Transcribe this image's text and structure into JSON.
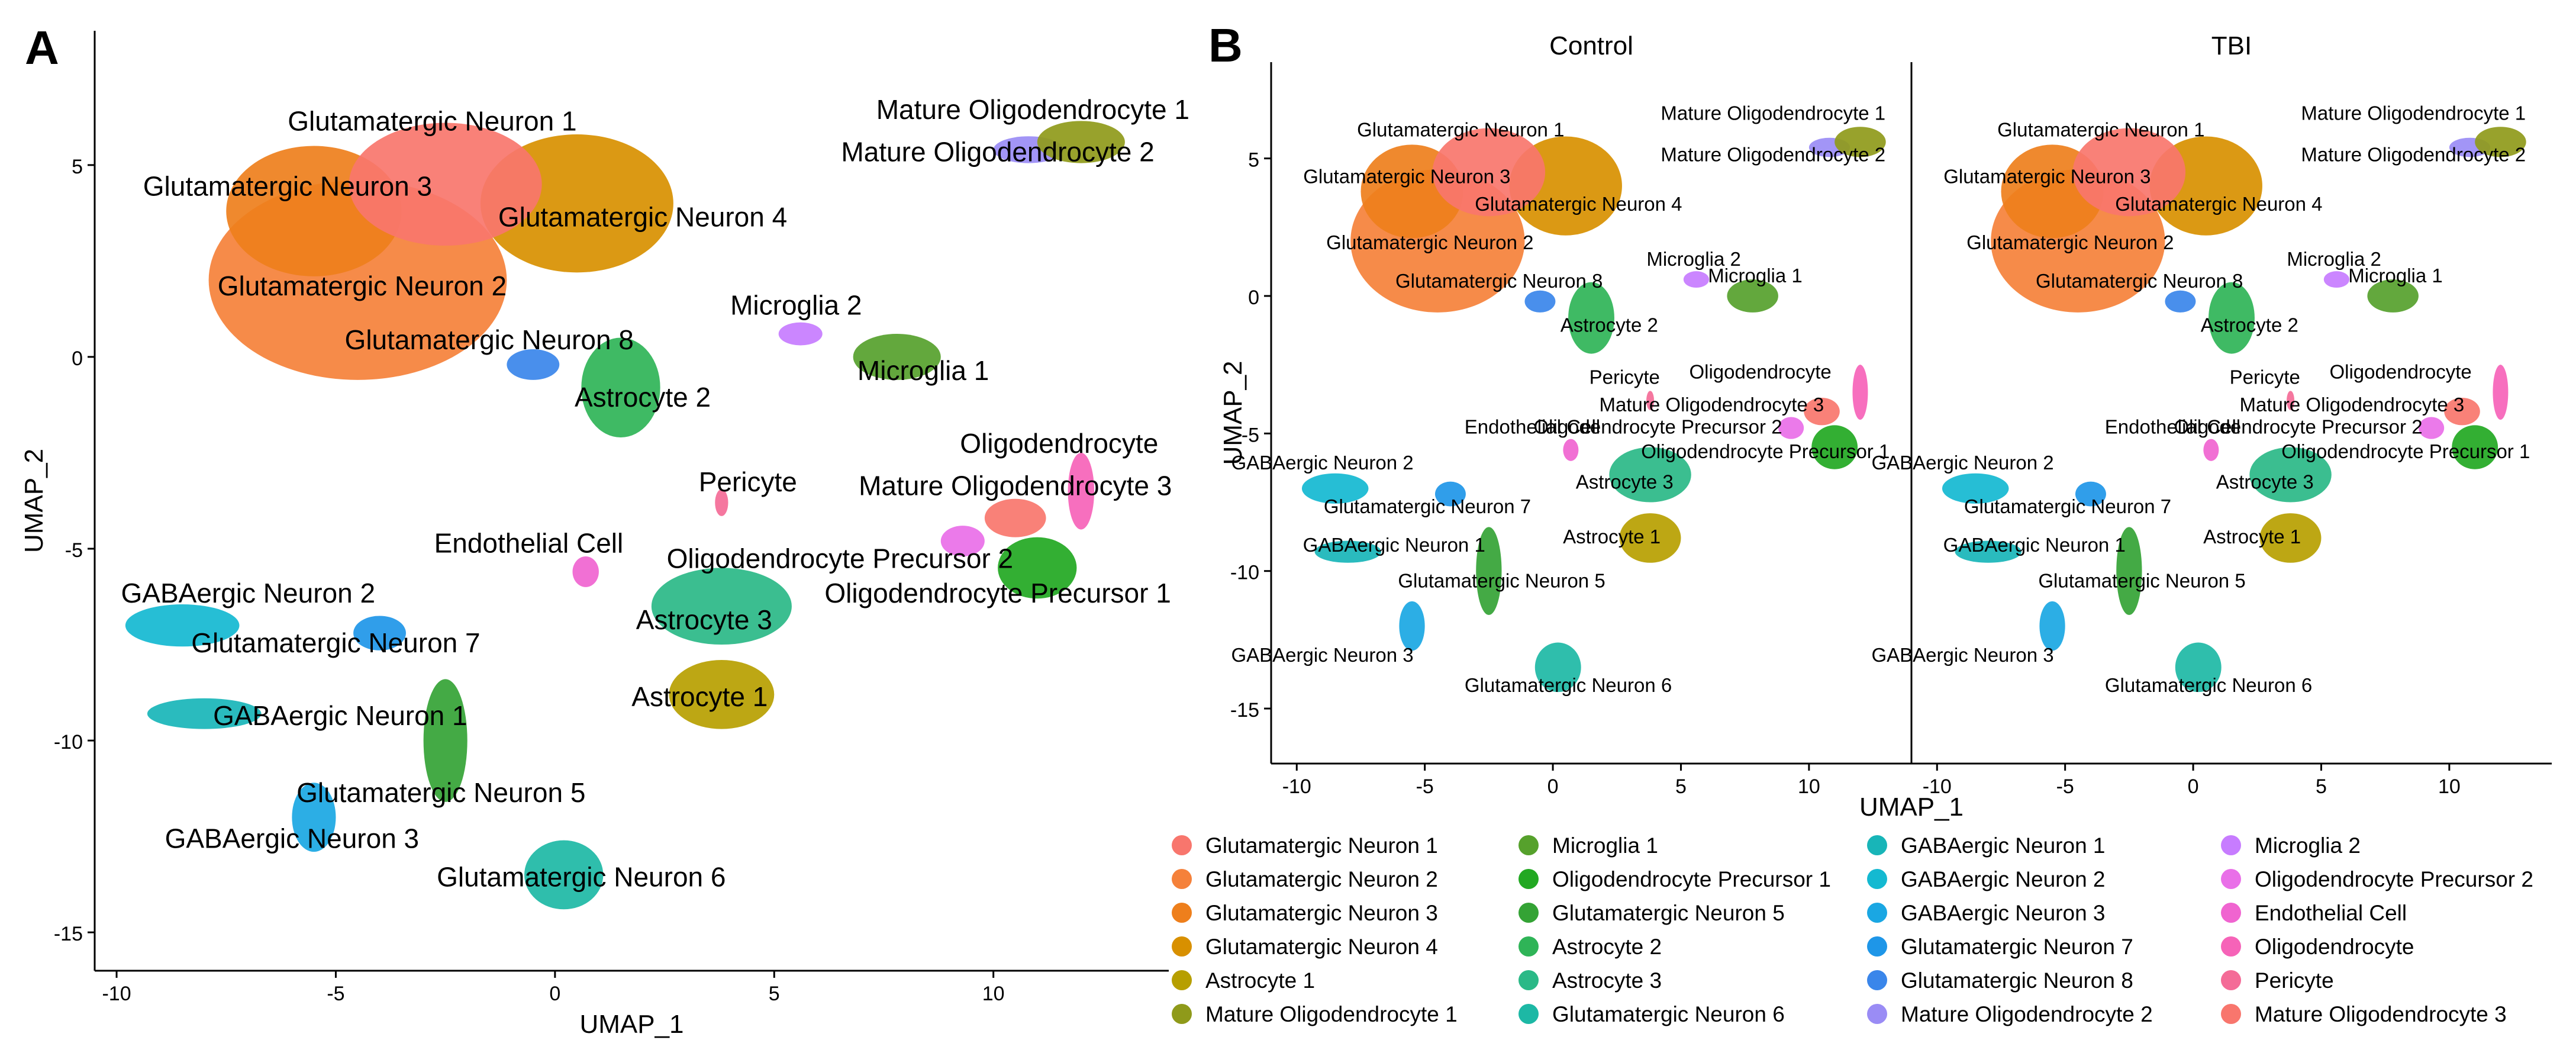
{
  "chart_data": [
    {
      "type": "scatter",
      "panel": "A",
      "title": "",
      "xlabel": "UMAP_1",
      "ylabel": "UMAP_2",
      "xlim": [
        -10.5,
        14
      ],
      "ylim": [
        -16,
        8.5
      ],
      "xticks": [
        -10,
        -5,
        0,
        5,
        10
      ],
      "yticks": [
        5,
        0,
        -5,
        -10,
        -15
      ],
      "clusters": [
        {
          "name": "Glutamatergic Neuron 1",
          "color": "#F8766D",
          "x": -2.5,
          "y": 4.5,
          "label_x": -2.8,
          "label_y": 5.9
        },
        {
          "name": "Glutamatergic Neuron 2",
          "color": "#F5813A",
          "x": -4.5,
          "y": 2.0,
          "label_x": -4.4,
          "label_y": 1.6
        },
        {
          "name": "Glutamatergic Neuron 3",
          "color": "#EE7F1C",
          "x": -5.5,
          "y": 3.8,
          "label_x": -6.1,
          "label_y": 4.2
        },
        {
          "name": "Glutamatergic Neuron 4",
          "color": "#D89000",
          "x": 0.5,
          "y": 4.0,
          "label_x": 2.0,
          "label_y": 3.4
        },
        {
          "name": "Astrocyte 1",
          "color": "#B79F00",
          "x": 3.8,
          "y": -8.8,
          "label_x": 3.3,
          "label_y": -9.1
        },
        {
          "name": "Mature Oligodendrocyte 1",
          "color": "#8F9A1A",
          "x": 12,
          "y": 5.6,
          "label_x": 10.9,
          "label_y": 6.2
        },
        {
          "name": "Microglia 1",
          "color": "#56A12C",
          "x": 7.8,
          "y": 0.0,
          "label_x": 8.4,
          "label_y": -0.6
        },
        {
          "name": "Oligodendrocyte Precursor 1",
          "color": "#22A822",
          "x": 11.0,
          "y": -5.5,
          "label_x": 10.1,
          "label_y": -6.4
        },
        {
          "name": "Glutamatergic Neuron 5",
          "color": "#34A335",
          "x": -2.5,
          "y": -10.0,
          "label_x": -2.6,
          "label_y": -11.6
        },
        {
          "name": "Astrocyte 2",
          "color": "#2FB457",
          "x": 1.5,
          "y": -0.8,
          "label_x": 2.0,
          "label_y": -1.3
        },
        {
          "name": "Astrocyte 3",
          "color": "#2AB987",
          "x": 3.8,
          "y": -6.5,
          "label_x": 3.4,
          "label_y": -7.1
        },
        {
          "name": "Glutamatergic Neuron 6",
          "color": "#1DB8A5",
          "x": 0.2,
          "y": -13.5,
          "label_x": 0.6,
          "label_y": -13.8
        },
        {
          "name": "GABAergic Neuron 1",
          "color": "#18B5B8",
          "x": -8.0,
          "y": -9.3,
          "label_x": -4.9,
          "label_y": -9.6
        },
        {
          "name": "GABAergic Neuron 2",
          "color": "#14B9D1",
          "x": -8.5,
          "y": -7.0,
          "label_x": -7.0,
          "label_y": -6.4
        },
        {
          "name": "GABAergic Neuron 3",
          "color": "#1AA7E3",
          "x": -5.5,
          "y": -12.0,
          "label_x": -6.0,
          "label_y": -12.8
        },
        {
          "name": "Glutamatergic Neuron 7",
          "color": "#1E96E8",
          "x": -4.0,
          "y": -7.2,
          "label_x": -5.0,
          "label_y": -7.7
        },
        {
          "name": "Glutamatergic Neuron 8",
          "color": "#3A86EA",
          "x": -0.5,
          "y": -0.2,
          "label_x": -1.5,
          "label_y": 0.2
        },
        {
          "name": "Mature Oligodendrocyte 2",
          "color": "#9A8CF5",
          "x": 10.8,
          "y": 5.4,
          "label_x": 10.1,
          "label_y": 5.1
        },
        {
          "name": "Microglia 2",
          "color": "#C77CFF",
          "x": 5.6,
          "y": 0.6,
          "label_x": 5.5,
          "label_y": 1.1
        },
        {
          "name": "Oligodendrocyte Precursor 2",
          "color": "#E96FE8",
          "x": 9.3,
          "y": -4.8,
          "label_x": 6.5,
          "label_y": -5.5
        },
        {
          "name": "Endothelial Cell",
          "color": "#F064D0",
          "x": 0.7,
          "y": -5.6,
          "label_x": -0.6,
          "label_y": -5.1
        },
        {
          "name": "Oligodendrocyte",
          "color": "#F663B8",
          "x": 12.0,
          "y": -3.5,
          "label_x": 11.5,
          "label_y": -2.5
        },
        {
          "name": "Pericyte",
          "color": "#F46B97",
          "x": 3.8,
          "y": -3.8,
          "label_x": 4.4,
          "label_y": -3.5
        },
        {
          "name": "Mature Oligodendrocyte 3",
          "color": "#F8766D",
          "x": 10.5,
          "y": -4.2,
          "label_x": 10.5,
          "label_y": -3.6
        }
      ]
    },
    {
      "type": "scatter",
      "panel": "B",
      "facets": [
        "Control",
        "TBI"
      ],
      "xlabel": "UMAP_1",
      "ylabel": "UMAP_2",
      "xlim": [
        -11,
        14
      ],
      "ylim": [
        -17,
        8.5
      ],
      "xticks": [
        -10,
        -5,
        0,
        5,
        10
      ],
      "yticks": [
        5,
        0,
        -5,
        -10,
        -15
      ],
      "facet_labels": [
        {
          "name": "Mature Oligodendrocyte 1",
          "label_x": 8.6,
          "label_y": 6.4
        },
        {
          "name": "Mature Oligodendrocyte 2",
          "label_x": 8.6,
          "label_y": 4.9
        },
        {
          "name": "Glutamatergic Neuron 1",
          "label_x": -3.6,
          "label_y": 5.8
        },
        {
          "name": "Glutamatergic Neuron 3",
          "label_x": -5.7,
          "label_y": 4.1
        },
        {
          "name": "Glutamatergic Neuron 4",
          "label_x": 1.0,
          "label_y": 3.1
        },
        {
          "name": "Glutamatergic Neuron 2",
          "label_x": -4.8,
          "label_y": 1.7
        },
        {
          "name": "Microglia 2",
          "label_x": 5.5,
          "label_y": 1.1
        },
        {
          "name": "Microglia 1",
          "label_x": 7.9,
          "label_y": 0.5
        },
        {
          "name": "Glutamatergic Neuron 8",
          "label_x": -2.1,
          "label_y": 0.3
        },
        {
          "name": "Astrocyte 2",
          "label_x": 2.2,
          "label_y": -1.3
        },
        {
          "name": "Oligodendrocyte",
          "label_x": 8.1,
          "label_y": -3.0
        },
        {
          "name": "Pericyte",
          "label_x": 2.8,
          "label_y": -3.2
        },
        {
          "name": "Mature Oligodendrocyte 3",
          "label_x": 6.2,
          "label_y": -4.2
        },
        {
          "name": "Endothelial Cell",
          "label_x": -0.8,
          "label_y": -5.0
        },
        {
          "name": "Oligodendrocyte Precursor 2",
          "label_x": 4.1,
          "label_y": -5.0
        },
        {
          "name": "Oligodendrocyte Precursor 1",
          "label_x": 8.3,
          "label_y": -5.9
        },
        {
          "name": "GABAergic Neuron 2",
          "label_x": -9.0,
          "label_y": -6.3
        },
        {
          "name": "Astrocyte 3",
          "label_x": 2.8,
          "label_y": -7.0
        },
        {
          "name": "Glutamatergic Neuron 7",
          "label_x": -4.9,
          "label_y": -7.9
        },
        {
          "name": "Astrocyte 1",
          "label_x": 2.3,
          "label_y": -9.0
        },
        {
          "name": "GABAergic Neuron 1",
          "label_x": -6.2,
          "label_y": -9.3
        },
        {
          "name": "Glutamatergic Neuron 5",
          "label_x": -2.0,
          "label_y": -10.6
        },
        {
          "name": "GABAergic Neuron 3",
          "label_x": -9.0,
          "label_y": -13.3
        },
        {
          "name": "Glutamatergic Neuron 6",
          "label_x": 0.6,
          "label_y": -14.4
        }
      ]
    }
  ],
  "panels": {
    "a_label": "A",
    "b_label": "B"
  },
  "legend": [
    [
      "Glutamatergic Neuron 1",
      "Glutamatergic Neuron 2",
      "Glutamatergic Neuron 3",
      "Glutamatergic Neuron 4",
      "Astrocyte 1",
      "Mature Oligodendrocyte 1"
    ],
    [
      "Microglia 1",
      "Oligodendrocyte Precursor 1",
      "Glutamatergic Neuron 5",
      "Astrocyte 2",
      "Astrocyte 3",
      "Glutamatergic Neuron 6"
    ],
    [
      "GABAergic Neuron 1",
      "GABAergic Neuron 2",
      "GABAergic Neuron 3",
      "Glutamatergic Neuron 7",
      "Glutamatergic Neuron 8",
      "Mature Oligodendrocyte 2"
    ],
    [
      "Microglia 2",
      "Oligodendrocyte Precursor 2",
      "Endothelial Cell",
      "Oligodendrocyte",
      "Pericyte",
      "Mature Oligodendrocyte 3"
    ]
  ]
}
